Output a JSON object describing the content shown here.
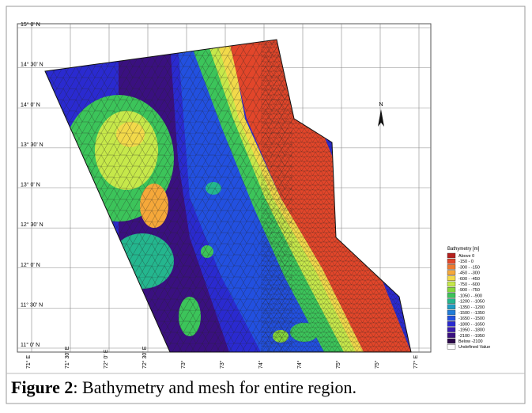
{
  "figure": {
    "lat_labels": [
      "15° 0' N",
      "14° 30' N",
      "14° 0' N",
      "13° 30' N",
      "13° 0' N",
      "12° 30' N",
      "12° 0' N",
      "11° 30' N",
      "11° 0' N"
    ],
    "lon_labels": [
      "71° E",
      "71° 30' E",
      "72° 0' E",
      "72° 30' E",
      "73°",
      "73°",
      "74°",
      "74°",
      "75°",
      "75°",
      "77° E"
    ],
    "compass": "N",
    "legend": {
      "title": "Bathymetry [m]",
      "items": [
        {
          "label": "Above 0",
          "color": "#b5201e"
        },
        {
          "label": "-150 - 0",
          "color": "#e2462a"
        },
        {
          "label": "-300 - -150",
          "color": "#ee7a30"
        },
        {
          "label": "-450 - -300",
          "color": "#f5a83a"
        },
        {
          "label": "-600 - -450",
          "color": "#f2d94a"
        },
        {
          "label": "-750 - -600",
          "color": "#c6e84a"
        },
        {
          "label": "-900 - -750",
          "color": "#86d83c"
        },
        {
          "label": "-1050 - -900",
          "color": "#3cc45a"
        },
        {
          "label": "-1200 - -1050",
          "color": "#24b68e"
        },
        {
          "label": "-1350 - -1200",
          "color": "#1e9cc4"
        },
        {
          "label": "-1500 - -1350",
          "color": "#207cd8"
        },
        {
          "label": "-1650 - -1500",
          "color": "#2250e0"
        },
        {
          "label": "-1800 - -1650",
          "color": "#2a2ad0"
        },
        {
          "label": "-1950 - -1800",
          "color": "#3a1cb0"
        },
        {
          "label": "-2100 - -1950",
          "color": "#3a1080"
        },
        {
          "label": "Below -2100",
          "color": "#2a0848"
        },
        {
          "label": "Undefined Value",
          "color": "#ffffff"
        }
      ]
    }
  },
  "caption": {
    "label": "Figure 2",
    "text": ": Bathymetry and mesh for entire region."
  }
}
